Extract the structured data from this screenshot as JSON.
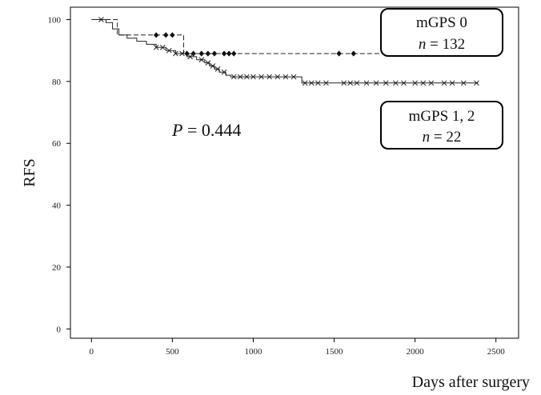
{
  "chart_data": {
    "type": "line",
    "title": "",
    "xlabel": "Days after surgery",
    "ylabel": "RFS",
    "xlim": [
      -130,
      2640
    ],
    "ylim": [
      -3,
      104
    ],
    "x_ticks": [
      0,
      500,
      1000,
      1500,
      2000,
      2500
    ],
    "y_ticks": [
      0,
      20,
      40,
      60,
      80,
      100
    ],
    "grid": false,
    "annotation": {
      "prefix": "P",
      "text": " = 0.444"
    },
    "legend": [
      {
        "line1": "mGPS 0",
        "line2_italic": "n",
        "line2_rest": " = 132",
        "placement": "top-right"
      },
      {
        "line1": "mGPS 1, 2",
        "line2_italic": "n",
        "line2_rest": " = 22",
        "placement": "right"
      }
    ],
    "series": [
      {
        "style": "dashed",
        "marker": "diamond",
        "steps": [
          [
            0,
            100
          ],
          [
            160,
            100
          ],
          [
            160,
            95
          ],
          [
            570,
            95
          ],
          [
            570,
            89
          ],
          [
            2230,
            89
          ]
        ],
        "censored": [
          [
            400,
            95
          ],
          [
            460,
            95
          ],
          [
            500,
            95
          ],
          [
            590,
            89
          ],
          [
            630,
            89
          ],
          [
            680,
            89
          ],
          [
            720,
            89
          ],
          [
            760,
            89
          ],
          [
            820,
            89
          ],
          [
            850,
            89
          ],
          [
            880,
            89
          ],
          [
            1530,
            89
          ],
          [
            1620,
            89
          ],
          [
            1900,
            89
          ],
          [
            2000,
            89
          ],
          [
            2050,
            89
          ],
          [
            2150,
            89
          ],
          [
            2220,
            89
          ]
        ]
      },
      {
        "style": "solid",
        "marker": "x",
        "steps": [
          [
            0,
            100
          ],
          [
            90,
            100
          ],
          [
            90,
            99
          ],
          [
            130,
            99
          ],
          [
            130,
            97
          ],
          [
            170,
            97
          ],
          [
            170,
            95
          ],
          [
            220,
            95
          ],
          [
            220,
            94
          ],
          [
            280,
            94
          ],
          [
            280,
            93
          ],
          [
            340,
            93
          ],
          [
            340,
            92
          ],
          [
            400,
            92
          ],
          [
            400,
            91
          ],
          [
            460,
            91
          ],
          [
            460,
            90
          ],
          [
            520,
            90
          ],
          [
            520,
            89
          ],
          [
            590,
            89
          ],
          [
            590,
            88
          ],
          [
            650,
            88
          ],
          [
            650,
            87
          ],
          [
            700,
            87
          ],
          [
            700,
            86
          ],
          [
            730,
            86
          ],
          [
            730,
            85
          ],
          [
            760,
            85
          ],
          [
            760,
            84
          ],
          [
            790,
            84
          ],
          [
            790,
            83
          ],
          [
            830,
            83
          ],
          [
            830,
            82
          ],
          [
            860,
            82
          ],
          [
            860,
            81.5
          ],
          [
            1300,
            81.5
          ],
          [
            1300,
            79.5
          ],
          [
            2390,
            79.5
          ]
        ],
        "censored": [
          [
            60,
            100
          ],
          [
            400,
            91
          ],
          [
            440,
            91
          ],
          [
            480,
            90
          ],
          [
            520,
            89
          ],
          [
            560,
            89
          ],
          [
            610,
            88
          ],
          [
            680,
            87
          ],
          [
            720,
            86
          ],
          [
            750,
            85
          ],
          [
            780,
            84
          ],
          [
            820,
            83
          ],
          [
            880,
            81.5
          ],
          [
            920,
            81.5
          ],
          [
            960,
            81.5
          ],
          [
            1000,
            81.5
          ],
          [
            1050,
            81.5
          ],
          [
            1100,
            81.5
          ],
          [
            1150,
            81.5
          ],
          [
            1200,
            81.5
          ],
          [
            1250,
            81.5
          ],
          [
            1320,
            79.5
          ],
          [
            1360,
            79.5
          ],
          [
            1400,
            79.5
          ],
          [
            1450,
            79.5
          ],
          [
            1560,
            79.5
          ],
          [
            1600,
            79.5
          ],
          [
            1640,
            79.5
          ],
          [
            1700,
            79.5
          ],
          [
            1760,
            79.5
          ],
          [
            1820,
            79.5
          ],
          [
            1880,
            79.5
          ],
          [
            1930,
            79.5
          ],
          [
            2000,
            79.5
          ],
          [
            2050,
            79.5
          ],
          [
            2100,
            79.5
          ],
          [
            2180,
            79.5
          ],
          [
            2230,
            79.5
          ],
          [
            2300,
            79.5
          ],
          [
            2380,
            79.5
          ]
        ]
      }
    ]
  }
}
